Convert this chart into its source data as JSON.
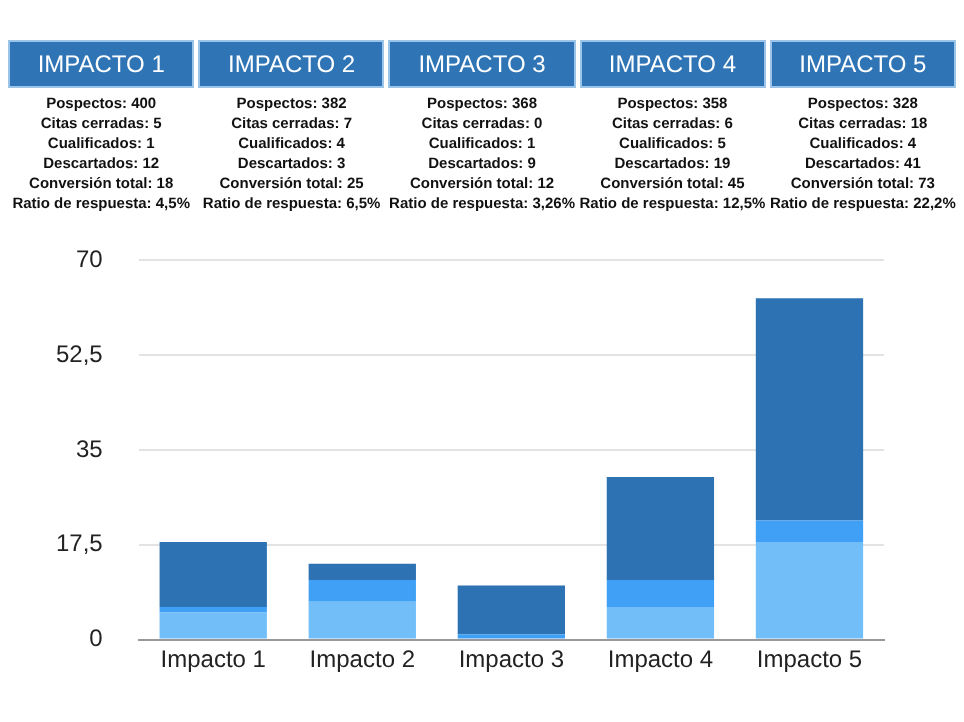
{
  "chart_data": {
    "type": "bar",
    "stacked": true,
    "categories": [
      "Impacto 1",
      "Impacto 2",
      "Impacto 3",
      "Impacto 4",
      "Impacto 5"
    ],
    "series": [
      {
        "color": "#72bef8",
        "values": [
          5,
          7,
          0,
          6,
          18
        ]
      },
      {
        "color": "#40a0f5",
        "values": [
          1,
          4,
          1,
          5,
          4
        ]
      },
      {
        "color": "#2d72b3",
        "values": [
          12,
          3,
          9,
          19,
          41
        ]
      }
    ],
    "ylim": [
      0,
      70
    ],
    "yticks": [
      0,
      {
        "value": 17.5,
        "label": "17,5"
      },
      35,
      {
        "value": 52.5,
        "label": "52,5"
      },
      70
    ],
    "grid": "y",
    "legend": false,
    "annotations": [
      "IMPACTO 1",
      "IMPACTO 2",
      "IMPACTO 3",
      "IMPACTO 4",
      "IMPACTO 5",
      "Pospectos: 400\nCitas cerradas: 5\nCualificados: 1\nDescartados: 12\nConversión total: 18\nRatio de respuesta: 4,5%",
      "Pospectos: 382\nCitas cerradas: 7\nCualificados: 4\nDescartados: 3\nConversión total: 25\nRatio de respuesta: 6,5%",
      "Pospectos: 368\nCitas cerradas: 0\nCualificados: 1\nDescartados: 9\nConversión total: 12\nRatio de respuesta: 3,26%",
      "Pospectos: 358\nCitas cerradas: 6\nCualificados: 5\nDescartados: 19\nConversión total: 45\nRatio de respuesta: 12,5%",
      "Pospectos: 328\nCitas cerradas: 18\nCualificados: 4\nDescartados: 41\nConversión total: 73\nRatio de respuesta: 22,2%"
    ]
  }
}
